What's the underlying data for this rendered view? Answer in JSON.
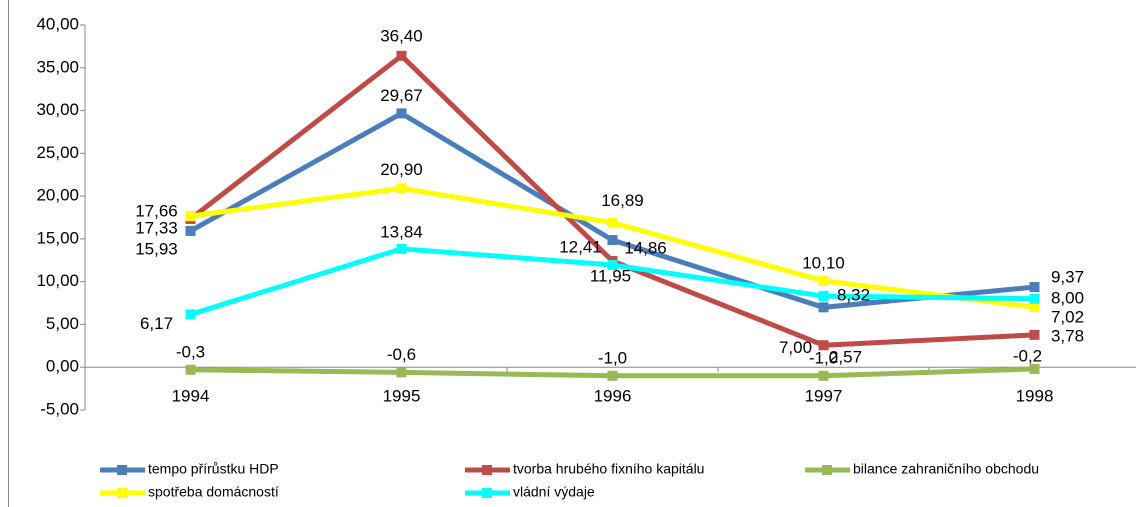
{
  "chart_data": {
    "type": "line",
    "categories": [
      "1994",
      "1995",
      "1996",
      "1997",
      "1998"
    ],
    "ylim": [
      -5,
      40
    ],
    "yticks": [
      {
        "value": -5,
        "label": "-5,00"
      },
      {
        "value": 0,
        "label": "0,00"
      },
      {
        "value": 5,
        "label": "5,00"
      },
      {
        "value": 10,
        "label": "10,00"
      },
      {
        "value": 15,
        "label": "15,00"
      },
      {
        "value": 20,
        "label": "20,00"
      },
      {
        "value": 25,
        "label": "25,00"
      },
      {
        "value": 30,
        "label": "30,00"
      },
      {
        "value": 35,
        "label": "35,00"
      },
      {
        "value": 40,
        "label": "40,00"
      }
    ],
    "legend": "bottom",
    "series": [
      {
        "name": "tempo přírůstku HDP",
        "color": "#4a7ebb",
        "values": [
          15.93,
          29.67,
          14.86,
          7.0,
          9.37
        ],
        "value_labels": [
          "15,93",
          "29,67",
          "14,86",
          "7,00",
          "9,37"
        ]
      },
      {
        "name": "tvorba hrubého fixního kapitálu",
        "color": "#be4b48",
        "values": [
          17.33,
          36.4,
          12.41,
          2.57,
          3.78
        ],
        "value_labels": [
          "17,33",
          "36,40",
          "12,41",
          "2,57",
          "3,78"
        ]
      },
      {
        "name": "bilance zahraničního obchodu",
        "color": "#98b954",
        "values": [
          -0.3,
          -0.6,
          -1.0,
          -1.0,
          -0.2
        ],
        "value_labels": [
          "-0,3",
          "-0,6",
          "-1,0",
          "-1,0",
          "-0,2"
        ]
      },
      {
        "name": "spotřeba domácností",
        "color": "#ffff00",
        "values": [
          17.66,
          20.9,
          16.89,
          10.1,
          7.02
        ],
        "value_labels": [
          "17,66",
          "20,90",
          "16,89",
          "10,10",
          "7,02"
        ]
      },
      {
        "name": "vládní výdaje",
        "color": "#00ffff",
        "values": [
          6.17,
          13.84,
          11.95,
          8.32,
          8.0
        ],
        "value_labels": [
          "6,17",
          "13,84",
          "11,95",
          "8,32",
          "8,00"
        ]
      }
    ]
  }
}
